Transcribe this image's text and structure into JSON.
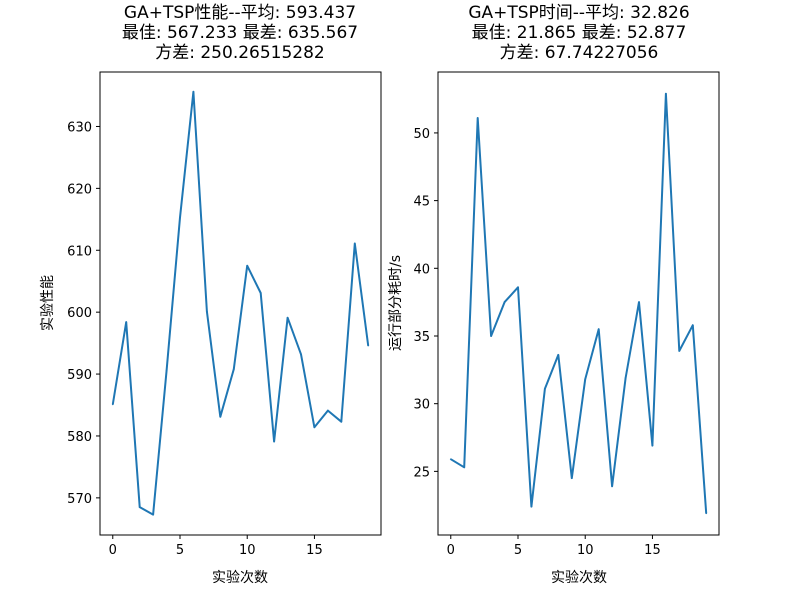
{
  "chart_data": [
    {
      "type": "line",
      "title_lines": [
        "GA+TSP性能--平均: 593.437",
        "最佳: 567.233 最差: 635.567",
        "方差: 250.26515282"
      ],
      "xlabel": "实验次数",
      "ylabel": "实验性能",
      "xlim": [
        -0.95,
        19.95
      ],
      "ylim": [
        564.0,
        638.8
      ],
      "xticks": [
        0,
        5,
        10,
        15
      ],
      "yticks": [
        570,
        580,
        590,
        600,
        610,
        620,
        630
      ],
      "x": [
        0,
        1,
        2,
        3,
        4,
        5,
        6,
        7,
        8,
        9,
        10,
        11,
        12,
        13,
        14,
        15,
        16,
        17,
        18,
        19
      ],
      "values": [
        585.1,
        598.4,
        568.5,
        567.3,
        590.6,
        615.3,
        635.6,
        600.1,
        583.1,
        590.8,
        607.5,
        603.1,
        579.1,
        599.1,
        593.2,
        581.4,
        584.1,
        582.3,
        611.1,
        594.6
      ],
      "color": "#1f77b4",
      "grid": false
    },
    {
      "type": "line",
      "title_lines": [
        "GA+TSP时间--平均: 32.826",
        "最佳: 21.865 最差: 52.877",
        "方差: 67.74227056"
      ],
      "xlabel": "实验次数",
      "ylabel": "运行部分耗时/s",
      "xlim": [
        -0.95,
        19.95
      ],
      "ylim": [
        20.3,
        54.5
      ],
      "xticks": [
        0,
        5,
        10,
        15
      ],
      "yticks": [
        25,
        30,
        35,
        40,
        45,
        50
      ],
      "x": [
        0,
        1,
        2,
        3,
        4,
        5,
        6,
        7,
        8,
        9,
        10,
        11,
        12,
        13,
        14,
        15,
        16,
        17,
        18,
        19
      ],
      "values": [
        25.9,
        25.3,
        51.1,
        35.0,
        37.5,
        38.6,
        22.4,
        31.1,
        33.6,
        24.5,
        31.8,
        35.5,
        23.9,
        31.9,
        37.5,
        26.9,
        52.9,
        33.9,
        35.8,
        21.9
      ],
      "color": "#1f77b4",
      "grid": false
    }
  ]
}
